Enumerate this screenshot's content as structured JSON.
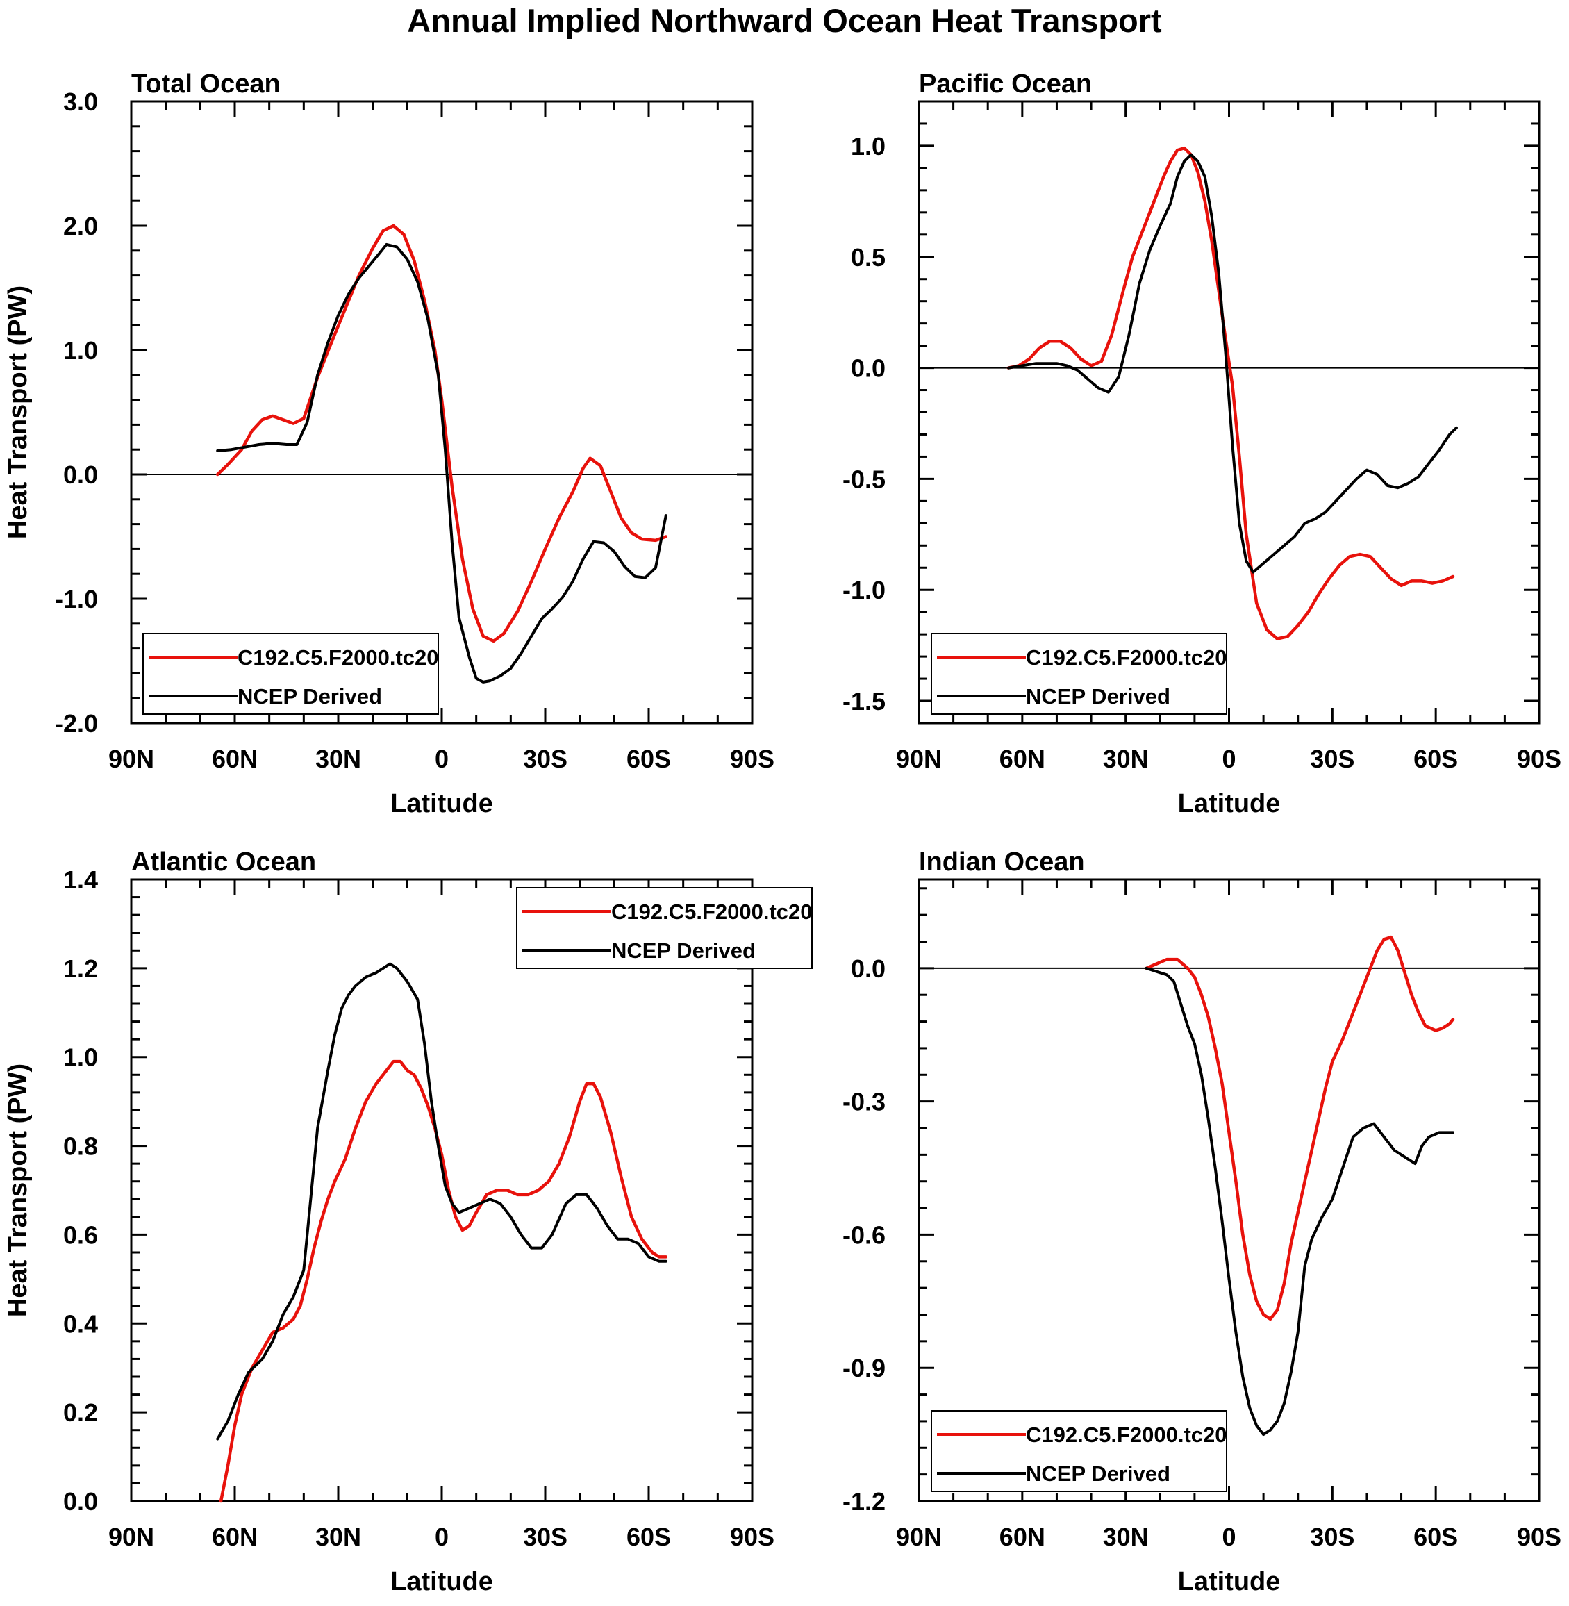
{
  "title": "Annual Implied Northward Ocean Heat Transport",
  "colors": {
    "model": "#e8120c",
    "obs": "#000000",
    "axis": "#000000"
  },
  "chart_data": [
    {
      "type": "line",
      "title": "Total Ocean",
      "xlabel": "Latitude",
      "ylabel": "Heat Transport (PW)",
      "xlim": [
        90,
        -90
      ],
      "x_ticks": [
        90,
        60,
        30,
        0,
        -30,
        -60,
        -90
      ],
      "x_tick_labels": [
        "90N",
        "60N",
        "30N",
        "0",
        "30S",
        "60S",
        "90S"
      ],
      "ylim": [
        -2.0,
        3.0
      ],
      "y_ticks": [
        -2.0,
        -1.0,
        0.0,
        1.0,
        2.0,
        3.0
      ],
      "y_tick_labels": [
        "-2.0",
        "-1.0",
        "0.0",
        "1.0",
        "2.0",
        "3.0"
      ],
      "zero_line": true,
      "legend_position": "bottom-left",
      "series": [
        {
          "name": "C192.C5.F2000.tc20",
          "color": "#e8120c",
          "x": [
            65,
            62,
            58,
            55,
            52,
            49,
            46,
            43,
            40,
            36,
            32,
            28,
            24,
            20,
            17,
            14,
            11,
            8,
            5,
            2,
            0,
            -3,
            -6,
            -9,
            -12,
            -15,
            -18,
            -22,
            -26,
            -30,
            -34,
            -38,
            -41,
            -43,
            -46,
            -49,
            -52,
            -55,
            -58,
            -62,
            -65
          ],
          "y": [
            0.0,
            0.08,
            0.2,
            0.35,
            0.44,
            0.47,
            0.44,
            0.41,
            0.45,
            0.78,
            1.06,
            1.33,
            1.6,
            1.82,
            1.96,
            2.0,
            1.93,
            1.72,
            1.4,
            1.0,
            0.6,
            -0.1,
            -0.68,
            -1.08,
            -1.3,
            -1.34,
            -1.28,
            -1.1,
            -0.86,
            -0.6,
            -0.35,
            -0.14,
            0.05,
            0.13,
            0.07,
            -0.14,
            -0.35,
            -0.47,
            -0.52,
            -0.53,
            -0.5
          ]
        },
        {
          "name": "NCEP Derived",
          "color": "#000000",
          "x": [
            65,
            61,
            57,
            53,
            49,
            45,
            42,
            39,
            36,
            33,
            30,
            27,
            24,
            21,
            18,
            16,
            13,
            10,
            7,
            4,
            1,
            -1,
            -3,
            -5,
            -8,
            -10,
            -12,
            -14,
            -17,
            -20,
            -23,
            -26,
            -29,
            -32,
            -35,
            -38,
            -41,
            -44,
            -47,
            -50,
            -53,
            -56,
            -59,
            -62,
            -65
          ],
          "y": [
            0.19,
            0.2,
            0.22,
            0.24,
            0.25,
            0.24,
            0.24,
            0.42,
            0.8,
            1.06,
            1.28,
            1.45,
            1.58,
            1.68,
            1.78,
            1.85,
            1.83,
            1.73,
            1.55,
            1.25,
            0.8,
            0.2,
            -0.55,
            -1.15,
            -1.47,
            -1.64,
            -1.67,
            -1.66,
            -1.62,
            -1.56,
            -1.44,
            -1.3,
            -1.16,
            -1.08,
            -0.99,
            -0.86,
            -0.68,
            -0.54,
            -0.55,
            -0.62,
            -0.74,
            -0.82,
            -0.83,
            -0.75,
            -0.33
          ]
        }
      ]
    },
    {
      "type": "line",
      "title": "Pacific Ocean",
      "xlabel": "Latitude",
      "ylabel": "",
      "xlim": [
        90,
        -90
      ],
      "x_ticks": [
        90,
        60,
        30,
        0,
        -30,
        -60,
        -90
      ],
      "x_tick_labels": [
        "90N",
        "60N",
        "30N",
        "0",
        "30S",
        "60S",
        "90S"
      ],
      "ylim": [
        -1.6,
        1.2
      ],
      "y_ticks": [
        -1.5,
        -1.0,
        -0.5,
        0.0,
        0.5,
        1.0
      ],
      "y_tick_labels": [
        "-1.5",
        "-1.0",
        "-0.5",
        "0.0",
        "0.5",
        "1.0"
      ],
      "zero_line": true,
      "legend_position": "bottom-left",
      "series": [
        {
          "name": "C192.C5.F2000.tc20",
          "color": "#e8120c",
          "x": [
            64,
            61,
            58,
            55,
            52,
            49,
            46,
            43,
            40,
            37,
            34,
            31,
            28,
            25,
            22,
            19,
            17,
            15,
            13,
            11,
            9,
            7,
            5,
            3,
            1,
            -1,
            -3,
            -5,
            -8,
            -11,
            -14,
            -17,
            -20,
            -23,
            -26,
            -29,
            -32,
            -35,
            -38,
            -41,
            -44,
            -47,
            -50,
            -53,
            -56,
            -59,
            -62,
            -65
          ],
          "y": [
            0.0,
            0.01,
            0.04,
            0.09,
            0.12,
            0.12,
            0.09,
            0.04,
            0.01,
            0.03,
            0.15,
            0.33,
            0.5,
            0.62,
            0.74,
            0.86,
            0.93,
            0.98,
            0.99,
            0.96,
            0.88,
            0.75,
            0.57,
            0.35,
            0.13,
            -0.08,
            -0.4,
            -0.75,
            -1.06,
            -1.18,
            -1.22,
            -1.21,
            -1.16,
            -1.1,
            -1.02,
            -0.95,
            -0.89,
            -0.85,
            -0.84,
            -0.85,
            -0.9,
            -0.95,
            -0.98,
            -0.96,
            -0.96,
            -0.97,
            -0.96,
            -0.94
          ]
        },
        {
          "name": "NCEP Derived",
          "color": "#000000",
          "x": [
            64,
            60,
            56,
            53,
            50,
            47,
            44,
            41,
            38,
            35,
            32,
            29,
            26,
            23,
            20,
            17,
            15,
            13,
            11,
            9,
            7,
            5,
            3,
            1,
            -1,
            -3,
            -5,
            -7,
            -10,
            -13,
            -16,
            -19,
            -22,
            -25,
            -28,
            -31,
            -34,
            -37,
            -40,
            -43,
            -46,
            -49,
            -52,
            -55,
            -58,
            -61,
            -64,
            -66
          ],
          "y": [
            0.0,
            0.01,
            0.02,
            0.02,
            0.02,
            0.01,
            -0.01,
            -0.05,
            -0.09,
            -0.11,
            -0.04,
            0.15,
            0.38,
            0.53,
            0.64,
            0.74,
            0.86,
            0.93,
            0.96,
            0.93,
            0.86,
            0.68,
            0.43,
            0.07,
            -0.35,
            -0.7,
            -0.87,
            -0.92,
            -0.88,
            -0.84,
            -0.8,
            -0.76,
            -0.7,
            -0.68,
            -0.65,
            -0.6,
            -0.55,
            -0.5,
            -0.46,
            -0.48,
            -0.53,
            -0.54,
            -0.52,
            -0.49,
            -0.43,
            -0.37,
            -0.3,
            -0.27
          ]
        }
      ]
    },
    {
      "type": "line",
      "title": "Atlantic Ocean",
      "xlabel": "Latitude",
      "ylabel": "Heat Transport (PW)",
      "xlim": [
        90,
        -90
      ],
      "x_ticks": [
        90,
        60,
        30,
        0,
        -30,
        -60,
        -90
      ],
      "x_tick_labels": [
        "90N",
        "60N",
        "30N",
        "0",
        "30S",
        "60S",
        "90S"
      ],
      "ylim": [
        0.0,
        1.4
      ],
      "y_ticks": [
        0.0,
        0.2,
        0.4,
        0.6,
        0.8,
        1.0,
        1.2,
        1.4
      ],
      "y_tick_labels": [
        "0.0",
        "0.2",
        "0.4",
        "0.6",
        "0.8",
        "1.0",
        "1.2",
        "1.4"
      ],
      "zero_line": false,
      "legend_position": "top-right",
      "series": [
        {
          "name": "C192.C5.F2000.tc20",
          "color": "#e8120c",
          "x": [
            64,
            62,
            60,
            58,
            55,
            52,
            49,
            46,
            43,
            41,
            39,
            37,
            35,
            33,
            31,
            28,
            25,
            22,
            19,
            16,
            14,
            12,
            10,
            8,
            6,
            4,
            2,
            0,
            -2,
            -4,
            -6,
            -8,
            -10,
            -13,
            -16,
            -19,
            -22,
            -25,
            -28,
            -31,
            -34,
            -37,
            -40,
            -42,
            -44,
            -46,
            -49,
            -52,
            -55,
            -58,
            -61,
            -63,
            -65
          ],
          "y": [
            0.0,
            0.08,
            0.17,
            0.24,
            0.3,
            0.34,
            0.38,
            0.39,
            0.41,
            0.44,
            0.5,
            0.57,
            0.63,
            0.68,
            0.72,
            0.77,
            0.84,
            0.9,
            0.94,
            0.97,
            0.99,
            0.99,
            0.97,
            0.96,
            0.93,
            0.89,
            0.84,
            0.78,
            0.7,
            0.64,
            0.61,
            0.62,
            0.65,
            0.69,
            0.7,
            0.7,
            0.69,
            0.69,
            0.7,
            0.72,
            0.76,
            0.82,
            0.9,
            0.94,
            0.94,
            0.91,
            0.83,
            0.73,
            0.64,
            0.59,
            0.56,
            0.55,
            0.55
          ]
        },
        {
          "name": "NCEP Derived",
          "color": "#000000",
          "x": [
            65,
            62,
            59,
            56,
            52,
            49,
            46,
            43,
            40,
            38,
            36,
            33,
            31,
            29,
            27,
            25,
            22,
            19,
            17,
            15,
            13,
            10,
            7,
            5,
            3,
            1,
            -1,
            -3,
            -5,
            -8,
            -11,
            -14,
            -17,
            -20,
            -23,
            -26,
            -29,
            -32,
            -36,
            -39,
            -42,
            -45,
            -48,
            -51,
            -54,
            -57,
            -60,
            -63,
            -65
          ],
          "y": [
            0.14,
            0.18,
            0.24,
            0.29,
            0.32,
            0.36,
            0.42,
            0.46,
            0.52,
            0.68,
            0.84,
            0.97,
            1.05,
            1.11,
            1.14,
            1.16,
            1.18,
            1.19,
            1.2,
            1.21,
            1.2,
            1.17,
            1.13,
            1.03,
            0.9,
            0.8,
            0.71,
            0.67,
            0.65,
            0.66,
            0.67,
            0.68,
            0.67,
            0.64,
            0.6,
            0.57,
            0.57,
            0.6,
            0.67,
            0.69,
            0.69,
            0.66,
            0.62,
            0.59,
            0.59,
            0.58,
            0.55,
            0.54,
            0.54
          ]
        }
      ]
    },
    {
      "type": "line",
      "title": "Indian Ocean",
      "xlabel": "Latitude",
      "ylabel": "",
      "xlim": [
        90,
        -90
      ],
      "x_ticks": [
        90,
        60,
        30,
        0,
        -30,
        -60,
        -90
      ],
      "x_tick_labels": [
        "90N",
        "60N",
        "30N",
        "0",
        "30S",
        "60S",
        "90S"
      ],
      "ylim": [
        -1.2,
        0.2
      ],
      "y_ticks": [
        -1.2,
        -0.9,
        -0.6,
        -0.3,
        0.0
      ],
      "y_tick_labels": [
        "-1.2",
        "-0.9",
        "-0.6",
        "-0.3",
        "0.0"
      ],
      "zero_line": true,
      "legend_position": "bottom-left",
      "series": [
        {
          "name": "C192.C5.F2000.tc20",
          "color": "#e8120c",
          "x": [
            24,
            21,
            18,
            15,
            12,
            10,
            8,
            6,
            4,
            2,
            0,
            -2,
            -4,
            -6,
            -8,
            -10,
            -12,
            -14,
            -16,
            -18,
            -20,
            -22,
            -24,
            -26,
            -28,
            -30,
            -33,
            -36,
            -39,
            -41,
            -43,
            -45,
            -47,
            -49,
            -51,
            -53,
            -55,
            -57,
            -60,
            -62,
            -64,
            -65
          ],
          "y": [
            0.0,
            0.01,
            0.02,
            0.02,
            0.0,
            -0.02,
            -0.06,
            -0.11,
            -0.18,
            -0.26,
            -0.37,
            -0.48,
            -0.6,
            -0.69,
            -0.75,
            -0.78,
            -0.79,
            -0.77,
            -0.71,
            -0.62,
            -0.55,
            -0.48,
            -0.41,
            -0.34,
            -0.27,
            -0.21,
            -0.16,
            -0.1,
            -0.04,
            0.0,
            0.04,
            0.065,
            0.07,
            0.04,
            -0.01,
            -0.06,
            -0.1,
            -0.13,
            -0.14,
            -0.135,
            -0.125,
            -0.115
          ]
        },
        {
          "name": "NCEP Derived",
          "color": "#000000",
          "x": [
            24,
            22,
            20,
            18,
            16,
            14,
            12,
            10,
            8,
            6,
            4,
            2,
            0,
            -2,
            -4,
            -6,
            -8,
            -10,
            -12,
            -14,
            -16,
            -18,
            -20,
            -22,
            -24,
            -27,
            -30,
            -33,
            -36,
            -39,
            -42,
            -44,
            -46,
            -48,
            -50,
            -52,
            -54,
            -56,
            -58,
            -61,
            -64,
            -65
          ],
          "y": [
            0.0,
            -0.005,
            -0.01,
            -0.015,
            -0.03,
            -0.08,
            -0.13,
            -0.17,
            -0.24,
            -0.34,
            -0.45,
            -0.57,
            -0.7,
            -0.82,
            -0.92,
            -0.99,
            -1.03,
            -1.05,
            -1.04,
            -1.02,
            -0.98,
            -0.91,
            -0.82,
            -0.67,
            -0.61,
            -0.56,
            -0.52,
            -0.45,
            -0.38,
            -0.36,
            -0.35,
            -0.37,
            -0.39,
            -0.41,
            -0.42,
            -0.43,
            -0.44,
            -0.4,
            -0.38,
            -0.37,
            -0.37,
            -0.37
          ]
        }
      ]
    }
  ]
}
